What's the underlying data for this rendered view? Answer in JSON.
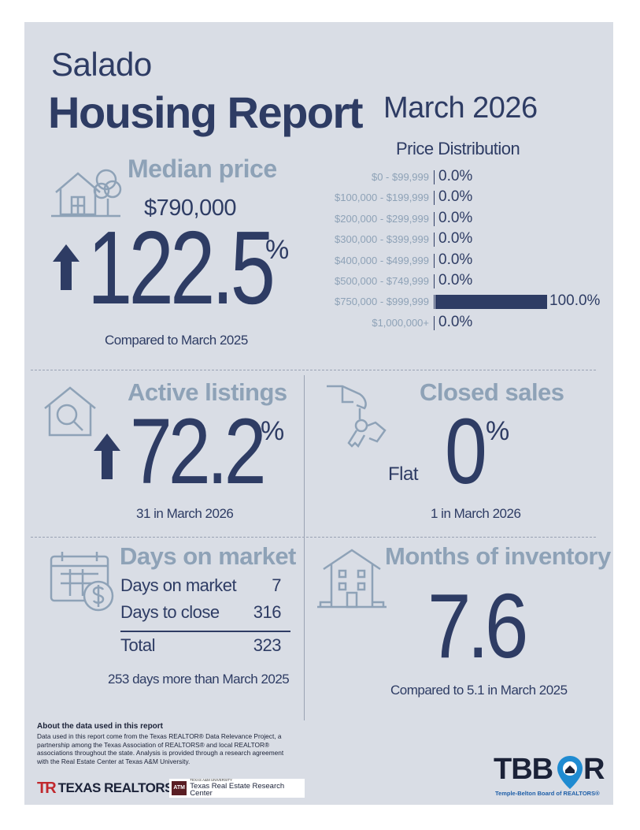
{
  "header": {
    "city": "Salado",
    "title": "Housing Report",
    "period": "March 2026"
  },
  "median_price": {
    "heading": "Median price",
    "value": "$790,000",
    "direction": "up",
    "change": "122.5",
    "pct_sign": "%",
    "compare": "Compared to March 2025",
    "icon": "house-with-tree-icon"
  },
  "price_distribution": {
    "heading": "Price Distribution",
    "rows": [
      {
        "label": "$0 - $99,999",
        "value": "0.0%",
        "pct": 0
      },
      {
        "label": "$100,000 - $199,999",
        "value": "0.0%",
        "pct": 0
      },
      {
        "label": "$200,000 - $299,999",
        "value": "0.0%",
        "pct": 0
      },
      {
        "label": "$300,000 - $399,999",
        "value": "0.0%",
        "pct": 0
      },
      {
        "label": "$400,000 - $499,999",
        "value": "0.0%",
        "pct": 0
      },
      {
        "label": "$500,000 - $749,999",
        "value": "0.0%",
        "pct": 0
      },
      {
        "label": "$750,000 - $999,999",
        "value": "100.0%",
        "pct": 100
      },
      {
        "label": "$1,000,000+",
        "value": "0.0%",
        "pct": 0
      }
    ]
  },
  "active_listings": {
    "heading": "Active listings",
    "direction": "up",
    "change": "72.2",
    "pct_sign": "%",
    "detail": "31 in March 2026",
    "icon": "house-magnifier-icon"
  },
  "closed_sales": {
    "heading": "Closed sales",
    "direction_label": "Flat",
    "change": "0",
    "pct_sign": "%",
    "detail": "1 in March 2026",
    "icon": "hand-keys-icon"
  },
  "days_on_market": {
    "heading": "Days on market",
    "rows": [
      {
        "label": "Days on market",
        "value": "7"
      },
      {
        "label": "Days to close",
        "value": "316"
      }
    ],
    "total_label": "Total",
    "total_value": "323",
    "compare": "253 days more than March 2025",
    "icon": "calendar-dollar-icon"
  },
  "months_inventory": {
    "heading": "Months of inventory",
    "value": "7.6",
    "compare": "Compared to 5.1 in March 2025",
    "icon": "apartment-building-icon"
  },
  "footer": {
    "about_heading": "About the data used in this report",
    "about_lines": [
      "Data used in this report come from the Texas REALTOR® Data Relevance Project, a",
      "partnership among the Texas Association of REALTORS® and local REALTOR®",
      "associations throughout the state. Analysis is provided through a research agreement",
      "with the Real Estate Center at Texas A&M University."
    ],
    "texas_realtors_mark": "TR",
    "texas_realtors": "TEXAS REALTORS",
    "tamu_mark": "ATM",
    "tamu_small": "TEXAS A&M UNIVERSITY",
    "tamu_center": "Texas Real Estate Research Center",
    "tbbor_logo_left": "TBB",
    "tbbor_logo_right": "R",
    "tbbor_subtitle": "Temple-Belton Board of REALTORS®"
  },
  "colors": {
    "navy": "#2e3c64",
    "muted": "#8ea2b7",
    "card": "#d9dde5",
    "red": "#c0282d",
    "maroon": "#5a1e24",
    "blue": "#1f8bd1"
  }
}
